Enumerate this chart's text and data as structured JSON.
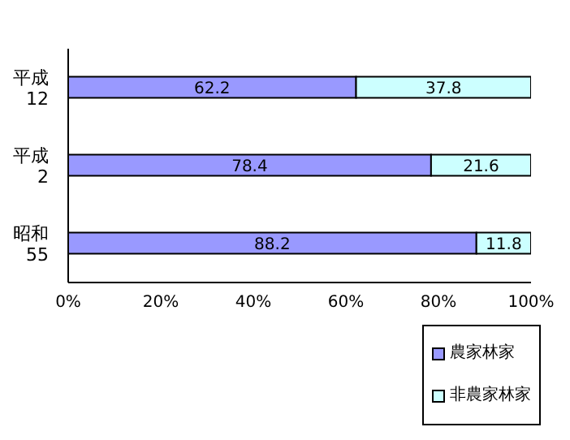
{
  "chart_data": {
    "type": "bar",
    "orientation": "horizontal",
    "stacked": true,
    "categories": [
      "平成12",
      "平成2",
      "昭和55"
    ],
    "series": [
      {
        "name": "農家林家",
        "color": "#9999ff",
        "values": [
          62.2,
          78.4,
          88.2
        ]
      },
      {
        "name": "非農家林家",
        "color": "#ccffff",
        "values": [
          37.8,
          21.6,
          11.8
        ]
      }
    ],
    "xlim": [
      0,
      100
    ],
    "xticks": [
      {
        "value": 0,
        "label": "0%"
      },
      {
        "value": 20,
        "label": "20%"
      },
      {
        "value": 40,
        "label": "40%"
      },
      {
        "value": 60,
        "label": "60%"
      },
      {
        "value": 80,
        "label": "80%"
      },
      {
        "value": 100,
        "label": "100%"
      }
    ],
    "data_labels": true,
    "legend": "bottom right"
  }
}
